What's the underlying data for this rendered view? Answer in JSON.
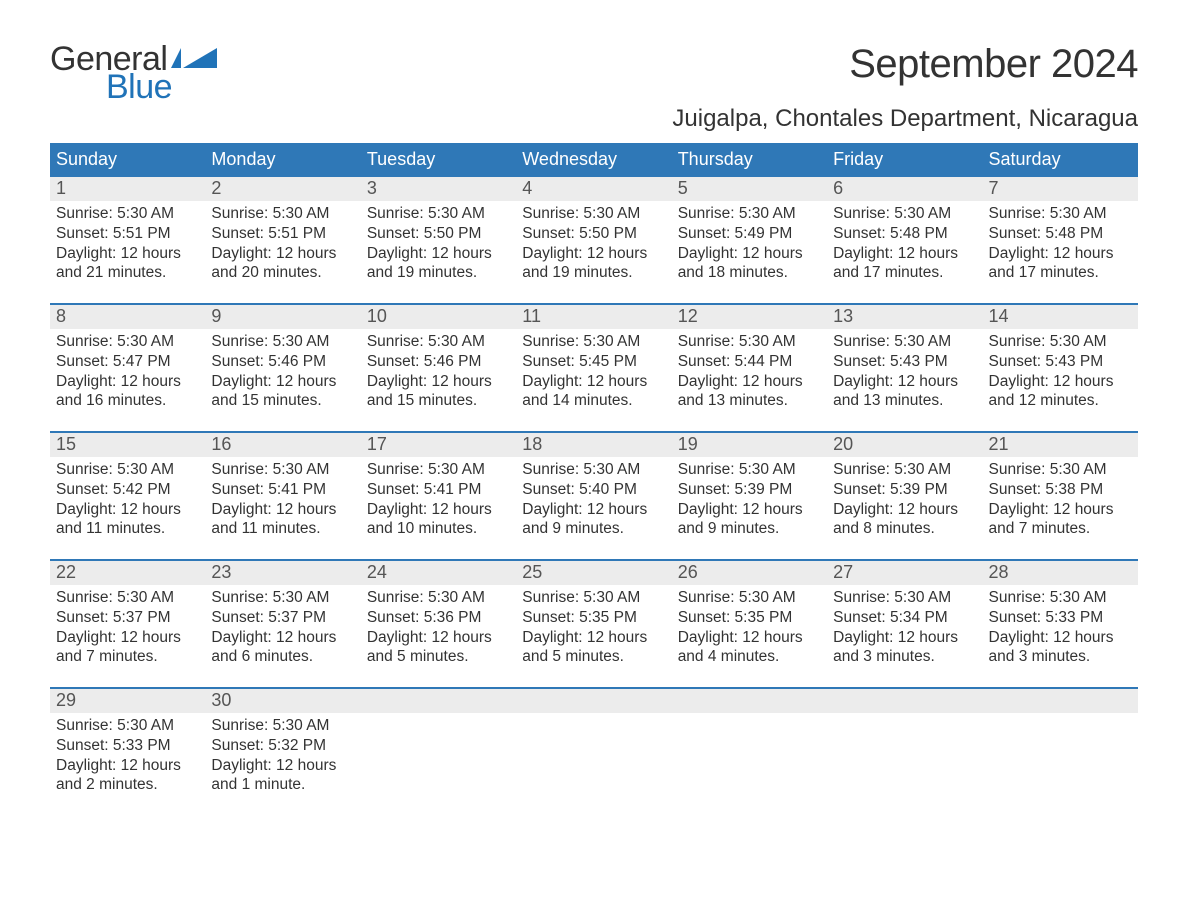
{
  "brand": {
    "general": "General",
    "blue": "Blue",
    "flag_color": "#2073b8"
  },
  "title": "September 2024",
  "location": "Juigalpa, Chontales Department, Nicaragua",
  "colors": {
    "header_bg": "#2f78b7",
    "header_text": "#ffffff",
    "daynum_bg": "#ececec",
    "daynum_text": "#555555",
    "body_text": "#333333",
    "page_bg": "#ffffff",
    "accent": "#2073b8"
  },
  "typography": {
    "title_fontsize": 40,
    "location_fontsize": 24,
    "weekday_fontsize": 18,
    "daynum_fontsize": 18,
    "body_fontsize": 15.5,
    "font_family": "Arial"
  },
  "layout": {
    "columns": 7,
    "rows": 5,
    "cell_min_height": 126
  },
  "weekdays": [
    "Sunday",
    "Monday",
    "Tuesday",
    "Wednesday",
    "Thursday",
    "Friday",
    "Saturday"
  ],
  "weeks": [
    [
      {
        "n": "1",
        "sunrise": "Sunrise: 5:30 AM",
        "sunset": "Sunset: 5:51 PM",
        "day1": "Daylight: 12 hours",
        "day2": "and 21 minutes."
      },
      {
        "n": "2",
        "sunrise": "Sunrise: 5:30 AM",
        "sunset": "Sunset: 5:51 PM",
        "day1": "Daylight: 12 hours",
        "day2": "and 20 minutes."
      },
      {
        "n": "3",
        "sunrise": "Sunrise: 5:30 AM",
        "sunset": "Sunset: 5:50 PM",
        "day1": "Daylight: 12 hours",
        "day2": "and 19 minutes."
      },
      {
        "n": "4",
        "sunrise": "Sunrise: 5:30 AM",
        "sunset": "Sunset: 5:50 PM",
        "day1": "Daylight: 12 hours",
        "day2": "and 19 minutes."
      },
      {
        "n": "5",
        "sunrise": "Sunrise: 5:30 AM",
        "sunset": "Sunset: 5:49 PM",
        "day1": "Daylight: 12 hours",
        "day2": "and 18 minutes."
      },
      {
        "n": "6",
        "sunrise": "Sunrise: 5:30 AM",
        "sunset": "Sunset: 5:48 PM",
        "day1": "Daylight: 12 hours",
        "day2": "and 17 minutes."
      },
      {
        "n": "7",
        "sunrise": "Sunrise: 5:30 AM",
        "sunset": "Sunset: 5:48 PM",
        "day1": "Daylight: 12 hours",
        "day2": "and 17 minutes."
      }
    ],
    [
      {
        "n": "8",
        "sunrise": "Sunrise: 5:30 AM",
        "sunset": "Sunset: 5:47 PM",
        "day1": "Daylight: 12 hours",
        "day2": "and 16 minutes."
      },
      {
        "n": "9",
        "sunrise": "Sunrise: 5:30 AM",
        "sunset": "Sunset: 5:46 PM",
        "day1": "Daylight: 12 hours",
        "day2": "and 15 minutes."
      },
      {
        "n": "10",
        "sunrise": "Sunrise: 5:30 AM",
        "sunset": "Sunset: 5:46 PM",
        "day1": "Daylight: 12 hours",
        "day2": "and 15 minutes."
      },
      {
        "n": "11",
        "sunrise": "Sunrise: 5:30 AM",
        "sunset": "Sunset: 5:45 PM",
        "day1": "Daylight: 12 hours",
        "day2": "and 14 minutes."
      },
      {
        "n": "12",
        "sunrise": "Sunrise: 5:30 AM",
        "sunset": "Sunset: 5:44 PM",
        "day1": "Daylight: 12 hours",
        "day2": "and 13 minutes."
      },
      {
        "n": "13",
        "sunrise": "Sunrise: 5:30 AM",
        "sunset": "Sunset: 5:43 PM",
        "day1": "Daylight: 12 hours",
        "day2": "and 13 minutes."
      },
      {
        "n": "14",
        "sunrise": "Sunrise: 5:30 AM",
        "sunset": "Sunset: 5:43 PM",
        "day1": "Daylight: 12 hours",
        "day2": "and 12 minutes."
      }
    ],
    [
      {
        "n": "15",
        "sunrise": "Sunrise: 5:30 AM",
        "sunset": "Sunset: 5:42 PM",
        "day1": "Daylight: 12 hours",
        "day2": "and 11 minutes."
      },
      {
        "n": "16",
        "sunrise": "Sunrise: 5:30 AM",
        "sunset": "Sunset: 5:41 PM",
        "day1": "Daylight: 12 hours",
        "day2": "and 11 minutes."
      },
      {
        "n": "17",
        "sunrise": "Sunrise: 5:30 AM",
        "sunset": "Sunset: 5:41 PM",
        "day1": "Daylight: 12 hours",
        "day2": "and 10 minutes."
      },
      {
        "n": "18",
        "sunrise": "Sunrise: 5:30 AM",
        "sunset": "Sunset: 5:40 PM",
        "day1": "Daylight: 12 hours",
        "day2": "and 9 minutes."
      },
      {
        "n": "19",
        "sunrise": "Sunrise: 5:30 AM",
        "sunset": "Sunset: 5:39 PM",
        "day1": "Daylight: 12 hours",
        "day2": "and 9 minutes."
      },
      {
        "n": "20",
        "sunrise": "Sunrise: 5:30 AM",
        "sunset": "Sunset: 5:39 PM",
        "day1": "Daylight: 12 hours",
        "day2": "and 8 minutes."
      },
      {
        "n": "21",
        "sunrise": "Sunrise: 5:30 AM",
        "sunset": "Sunset: 5:38 PM",
        "day1": "Daylight: 12 hours",
        "day2": "and 7 minutes."
      }
    ],
    [
      {
        "n": "22",
        "sunrise": "Sunrise: 5:30 AM",
        "sunset": "Sunset: 5:37 PM",
        "day1": "Daylight: 12 hours",
        "day2": "and 7 minutes."
      },
      {
        "n": "23",
        "sunrise": "Sunrise: 5:30 AM",
        "sunset": "Sunset: 5:37 PM",
        "day1": "Daylight: 12 hours",
        "day2": "and 6 minutes."
      },
      {
        "n": "24",
        "sunrise": "Sunrise: 5:30 AM",
        "sunset": "Sunset: 5:36 PM",
        "day1": "Daylight: 12 hours",
        "day2": "and 5 minutes."
      },
      {
        "n": "25",
        "sunrise": "Sunrise: 5:30 AM",
        "sunset": "Sunset: 5:35 PM",
        "day1": "Daylight: 12 hours",
        "day2": "and 5 minutes."
      },
      {
        "n": "26",
        "sunrise": "Sunrise: 5:30 AM",
        "sunset": "Sunset: 5:35 PM",
        "day1": "Daylight: 12 hours",
        "day2": "and 4 minutes."
      },
      {
        "n": "27",
        "sunrise": "Sunrise: 5:30 AM",
        "sunset": "Sunset: 5:34 PM",
        "day1": "Daylight: 12 hours",
        "day2": "and 3 minutes."
      },
      {
        "n": "28",
        "sunrise": "Sunrise: 5:30 AM",
        "sunset": "Sunset: 5:33 PM",
        "day1": "Daylight: 12 hours",
        "day2": "and 3 minutes."
      }
    ],
    [
      {
        "n": "29",
        "sunrise": "Sunrise: 5:30 AM",
        "sunset": "Sunset: 5:33 PM",
        "day1": "Daylight: 12 hours",
        "day2": "and 2 minutes."
      },
      {
        "n": "30",
        "sunrise": "Sunrise: 5:30 AM",
        "sunset": "Sunset: 5:32 PM",
        "day1": "Daylight: 12 hours",
        "day2": "and 1 minute."
      },
      {
        "n": "",
        "sunrise": "",
        "sunset": "",
        "day1": "",
        "day2": ""
      },
      {
        "n": "",
        "sunrise": "",
        "sunset": "",
        "day1": "",
        "day2": ""
      },
      {
        "n": "",
        "sunrise": "",
        "sunset": "",
        "day1": "",
        "day2": ""
      },
      {
        "n": "",
        "sunrise": "",
        "sunset": "",
        "day1": "",
        "day2": ""
      },
      {
        "n": "",
        "sunrise": "",
        "sunset": "",
        "day1": "",
        "day2": ""
      }
    ]
  ]
}
